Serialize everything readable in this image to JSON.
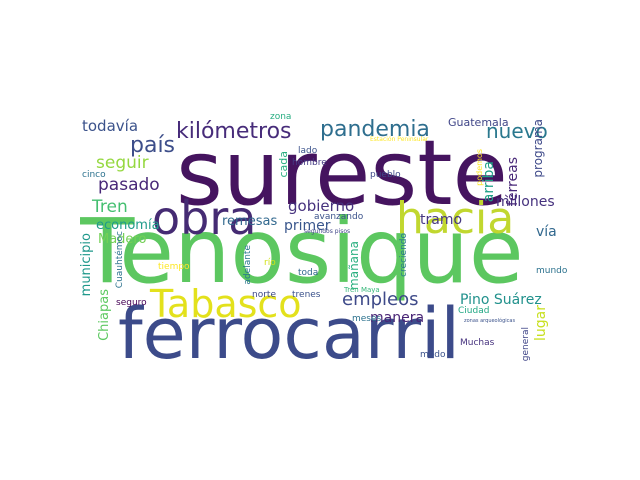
{
  "wordcloud": {
    "words": [
      {
        "text": "sureste",
        "color": "#45145f"
      },
      {
        "text": "Tenosique",
        "color": "#5cc760"
      },
      {
        "text": "ferrocarril",
        "color": "#3c4b8a"
      },
      {
        "text": "obra",
        "color": "#452b73"
      },
      {
        "text": "hacia",
        "color": "#c1d72f"
      },
      {
        "text": "Tabasco",
        "color": "#e3e11c"
      },
      {
        "text": "pandemia",
        "color": "#2e6e8e"
      },
      {
        "text": "kilómetros",
        "color": "#472c7a"
      },
      {
        "text": "país",
        "color": "#3d4e8a"
      },
      {
        "text": "nuevo",
        "color": "#2a788e"
      },
      {
        "text": "todavía",
        "color": "#3b528b"
      },
      {
        "text": "seguir",
        "color": "#95d840"
      },
      {
        "text": "pasado",
        "color": "#482878"
      },
      {
        "text": "Tren",
        "color": "#44bf70"
      },
      {
        "text": "economía",
        "color": "#1e9b8a"
      },
      {
        "text": "Madero",
        "color": "#73d056"
      },
      {
        "text": "gobierno",
        "color": "#46327e"
      },
      {
        "text": "remesas",
        "color": "#31688e"
      },
      {
        "text": "primer",
        "color": "#39568c"
      },
      {
        "text": "empleos",
        "color": "#3e4a89"
      },
      {
        "text": "Pino Suárez",
        "color": "#21918c"
      },
      {
        "text": "tramo",
        "color": "#453781"
      },
      {
        "text": "millones",
        "color": "#46327e"
      },
      {
        "text": "Guatemala",
        "color": "#404688"
      },
      {
        "text": "manera",
        "color": "#482475"
      },
      {
        "text": "vía",
        "color": "#31688e"
      },
      {
        "text": "lugar",
        "color": "#c8e020"
      },
      {
        "text": "cinco",
        "color": "#2c728e"
      },
      {
        "text": "zona",
        "color": "#27ad81"
      },
      {
        "text": "cada",
        "color": "#28ae80"
      },
      {
        "text": "lado",
        "color": "#3b528b"
      },
      {
        "text": "pueblo",
        "color": "#3e4989"
      },
      {
        "text": "hombre",
        "color": "#443a83"
      },
      {
        "text": "avanzando",
        "color": "#3b528b"
      },
      {
        "text": "arriba",
        "color": "#1fa187"
      },
      {
        "text": "férreas",
        "color": "#482878"
      },
      {
        "text": "programa",
        "color": "#3e4989"
      },
      {
        "text": "podemos",
        "color": "#fde725"
      },
      {
        "text": "Estación Peninsular",
        "color": "#fde725"
      },
      {
        "text": "mañana",
        "color": "#29af7f"
      },
      {
        "text": "creciendo",
        "color": "#2a788e"
      },
      {
        "text": "Chiapas",
        "color": "#5ec962"
      },
      {
        "text": "municipio",
        "color": "#1f988b"
      },
      {
        "text": "Cuauhtémoc",
        "color": "#2c728e"
      },
      {
        "text": "tiempo",
        "color": "#fde725"
      },
      {
        "text": "adelante",
        "color": "#2a788e"
      },
      {
        "text": "río",
        "color": "#d2e21b"
      },
      {
        "text": "toda",
        "color": "#31688e"
      },
      {
        "text": "segundos pisos",
        "color": "#404688"
      },
      {
        "text": "Tren Maya",
        "color": "#35b779"
      },
      {
        "text": "mundo",
        "color": "#2c728e"
      },
      {
        "text": "Ciudad",
        "color": "#22a884"
      },
      {
        "text": "zonas arqueológicas",
        "color": "#3b528b"
      },
      {
        "text": "seguro",
        "color": "#440154"
      },
      {
        "text": "norte",
        "color": "#3e4989"
      },
      {
        "text": "trenes",
        "color": "#3b528b"
      },
      {
        "text": "meses",
        "color": "#2c728e"
      },
      {
        "text": "general",
        "color": "#404688"
      },
      {
        "text": "Muchas",
        "color": "#46327e"
      },
      {
        "text": "modo",
        "color": "#3b528b"
      }
    ]
  }
}
